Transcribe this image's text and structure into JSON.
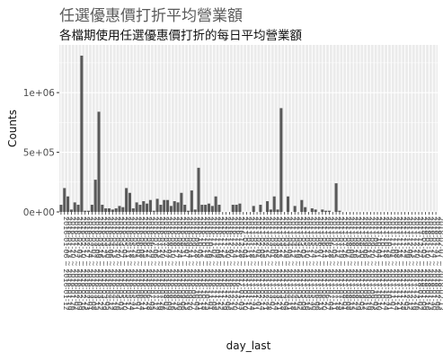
{
  "chart_data": {
    "type": "bar",
    "title": "任選優惠價打折平均營業額",
    "subtitle": "各檔期使用任選優惠價打折的每日平均營業額",
    "xlabel": "day_last",
    "ylabel": "Counts",
    "ylim": [
      0,
      1400000
    ],
    "y_ticks": [
      {
        "value": 0,
        "label": "0e+00"
      },
      {
        "value": 500000,
        "label": "5e+05"
      },
      {
        "value": 1000000,
        "label": "1e+06"
      }
    ],
    "grid": true,
    "legend": "none",
    "colors": {
      "panel": "#ebebeb",
      "grid": "#ffffff",
      "bar": "#595959"
    },
    "categories": [
      "2016-01-06 ~ 2016-01-12",
      "2016-01-13 ~ 2016-01-19",
      "2016-01-20 ~ 2016-01-26",
      "2016-01-27 ~ 2016-02-02",
      "2016-02-03 ~ 2016-02-09",
      "2016-02-10 ~ 2016-02-16",
      "2016-02-17 ~ 2016-02-23",
      "2016-02-24 ~ 2016-03-01",
      "2016-03-02 ~ 2016-03-08",
      "2016-03-09 ~ 2016-03-15",
      "2016-03-16 ~ 2016-03-22",
      "2016-03-23 ~ 2016-03-29",
      "2016-03-30 ~ 2016-04-05",
      "2016-04-06 ~ 2016-04-12",
      "2016-04-13 ~ 2016-04-19",
      "2016-04-20 ~ 2016-04-26",
      "2016-04-27 ~ 2016-05-03",
      "2016-05-04 ~ 2016-05-10",
      "2016-05-11 ~ 2016-05-17",
      "2016-05-18 ~ 2016-05-24",
      "2016-05-25 ~ 2016-05-31",
      "2016-06-01 ~ 2016-06-07",
      "2016-06-08 ~ 2016-06-14",
      "2016-06-15 ~ 2016-06-21",
      "2016-06-22 ~ 2016-06-28",
      "2016-06-29 ~ 2016-07-05",
      "2016-07-06 ~ 2016-07-12",
      "2016-07-13 ~ 2016-07-19",
      "2016-07-20 ~ 2016-07-26",
      "2016-07-27 ~ 2016-08-02",
      "2016-08-03 ~ 2016-08-09",
      "2016-08-10 ~ 2016-08-16",
      "2016-08-17 ~ 2016-08-23",
      "2016-08-24 ~ 2016-08-30",
      "2016-08-31 ~ 2016-09-06",
      "2016-09-07 ~ 2016-09-13",
      "2016-09-14 ~ 2016-09-20",
      "2016-09-21 ~ 2016-09-27",
      "2016-09-28 ~ 2016-10-04",
      "2016-10-05 ~ 2016-10-11",
      "2016-10-12 ~ 2016-10-18",
      "2016-10-19 ~ 2016-10-25",
      "2016-10-26 ~ 2016-11-01",
      "2016-11-02 ~ 2016-11-08",
      "2016-11-09 ~ 2016-11-15",
      "2016-11-16 ~ 2016-11-22",
      "2016-11-23 ~ 2016-11-29",
      "2016-11-30 ~ 2016-12-06",
      "2016-12-07 ~ 2016-12-13",
      "2016-12-14 ~ 2016-12-20",
      "2016-12-21 ~ 2016-12-27",
      "2016-12-28 ~ 2017-01-03",
      "2017-01-04 ~ 2017-01-10",
      "2017-01-11 ~ 2017-01-17",
      "2017-01-18 ~ 2017-01-24",
      "2017-01-25 ~ 2017-01-31",
      "2017-02-01 ~ 2017-02-07",
      "2017-02-08 ~ 2017-02-14",
      "2017-02-15 ~ 2017-02-21",
      "2017-02-22 ~ 2017-02-28",
      "2017-03-01 ~ 2017-03-07",
      "2017-03-08 ~ 2017-03-14",
      "2017-03-15 ~ 2017-03-21",
      "2017-03-22 ~ 2017-03-28",
      "2017-03-29 ~ 2017-04-04",
      "2017-04-05 ~ 2017-04-11",
      "2017-04-12 ~ 2017-04-18",
      "2017-04-19 ~ 2017-04-25",
      "2017-04-26 ~ 2017-05-02",
      "2017-05-03 ~ 2017-05-09",
      "2017-05-10 ~ 2017-05-16",
      "2017-05-17 ~ 2017-05-23",
      "2017-05-24 ~ 2017-05-30",
      "2017-05-31 ~ 2017-06-06",
      "2017-06-07 ~ 2017-06-13",
      "2017-06-14 ~ 2017-06-20",
      "2017-06-21 ~ 2017-06-27",
      "2017-06-28 ~ 2017-07-04",
      "2017-07-05 ~ 2017-07-11",
      "2017-07-12 ~ 2017-07-18",
      "2017-07-19 ~ 2017-07-25",
      "2017-07-26 ~ 2017-08-01",
      "2017-08-02 ~ 2017-08-08",
      "2017-08-09 ~ 2017-08-15",
      "2017-08-16 ~ 2017-08-22",
      "2017-08-23 ~ 2017-08-29",
      "2017-08-30 ~ 2017-09-05",
      "2017-09-06 ~ 2017-09-12",
      "2017-09-13 ~ 2017-09-19",
      "2017-09-20 ~ 2017-09-26",
      "2017-09-27 ~ 2017-10-03",
      "2017-10-04 ~ 2017-10-10",
      "2017-10-11 ~ 2017-10-17",
      "2017-10-18 ~ 2017-10-24",
      "2017-10-25 ~ 2017-10-31",
      "2017-11-01 ~ 2017-11-07",
      "2017-11-08 ~ 2017-11-14",
      "2017-11-15 ~ 2017-11-21",
      "2017-11-22 ~ 2017-11-28",
      "2017-11-29 ~ 2017-12-05",
      "2017-12-06 ~ 2017-12-12",
      "2017-12-13 ~ 2017-12-19",
      "2017-12-20 ~ 2017-12-26",
      "2017-12-27 ~ 2018-01-02",
      "2018-01-03 ~ 2018-01-09",
      "2018-01-10 ~ 2018-01-16",
      "2018-01-17 ~ 2018-01-23",
      "2018-01-24 ~ 2018-01-30",
      "2018-01-31 ~ 2018-02-06",
      "2018-02-07 ~ 2018-02-13"
    ],
    "values": [
      60000,
      200000,
      130000,
      20000,
      80000,
      60000,
      1310000,
      10000,
      10000,
      60000,
      270000,
      840000,
      60000,
      30000,
      30000,
      20000,
      30000,
      50000,
      40000,
      200000,
      160000,
      30000,
      80000,
      60000,
      90000,
      70000,
      100000,
      10000,
      110000,
      60000,
      100000,
      100000,
      50000,
      90000,
      80000,
      160000,
      60000,
      10000,
      180000,
      20000,
      370000,
      60000,
      60000,
      70000,
      50000,
      130000,
      60000,
      0,
      0,
      0,
      60000,
      60000,
      70000,
      0,
      0,
      0,
      50000,
      0,
      60000,
      0,
      90000,
      20000,
      130000,
      20000,
      870000,
      0,
      130000,
      0,
      50000,
      0,
      100000,
      40000,
      0,
      30000,
      20000,
      0,
      20000,
      10000,
      10000,
      0,
      240000,
      10000,
      0,
      0,
      0,
      0,
      0,
      0,
      0,
      0,
      0,
      0,
      0,
      0,
      0,
      0,
      0,
      0,
      0,
      0,
      0,
      0,
      0,
      0,
      0,
      0,
      0,
      0,
      0,
      0
    ]
  }
}
